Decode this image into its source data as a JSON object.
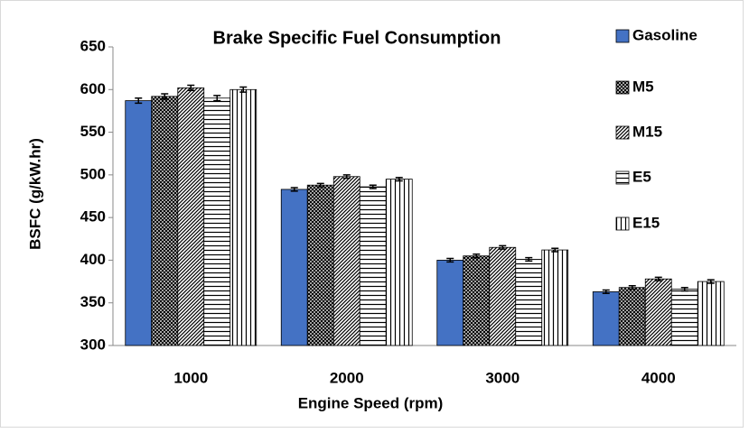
{
  "chart_data": {
    "type": "bar",
    "title": "Brake Specific Fuel Consumption",
    "x_label": "Engine Speed (rpm)",
    "y_label": "BSFC (g/kW.hr)",
    "categories": [
      "1000",
      "2000",
      "3000",
      "4000"
    ],
    "series": [
      {
        "name": "Gasoline",
        "color": "#4472c4",
        "pattern": "solid",
        "values": [
          587,
          483,
          400,
          363
        ],
        "errors": [
          3,
          2,
          2,
          2
        ]
      },
      {
        "name": "M5",
        "color": "#000000",
        "pattern": "crosshatch",
        "values": [
          592,
          488,
          405,
          368
        ],
        "errors": [
          3,
          2,
          2,
          2
        ]
      },
      {
        "name": "M15",
        "color": "#000000",
        "pattern": "diagonal",
        "values": [
          602,
          498,
          415,
          378
        ],
        "errors": [
          3,
          2,
          2,
          2
        ]
      },
      {
        "name": "E5",
        "color": "#000000",
        "pattern": "horizontal",
        "values": [
          590,
          486,
          401,
          366
        ],
        "errors": [
          3,
          2,
          2,
          2
        ]
      },
      {
        "name": "E15",
        "color": "#000000",
        "pattern": "vertical",
        "values": [
          600,
          495,
          412,
          375
        ],
        "errors": [
          3,
          2,
          2,
          2
        ]
      }
    ],
    "ylim": [
      300,
      650
    ],
    "yticks": [
      300,
      350,
      400,
      450,
      500,
      550,
      600,
      650
    ],
    "grid": false,
    "legend": "top-right"
  }
}
